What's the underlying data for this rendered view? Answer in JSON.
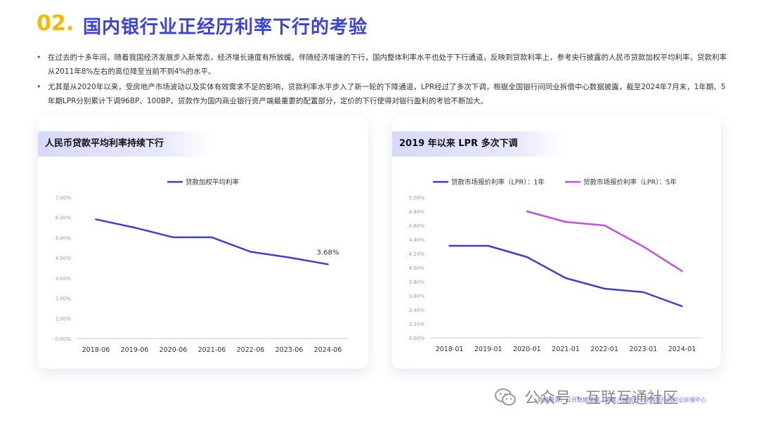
{
  "title": {
    "number": "02.",
    "text": "国内银行业正经历利率下行的考验"
  },
  "bullets": [
    "在过去的十多年间，随着我国经济发展步入新常态，经济增长速度有所放缓。伴随经济增速的下行，国内整体利率水平也处于下行通道，反映到贷款利率上，参考央行披露的人民币贷款加权平均利率，贷款利率从2011年8%左右的高位降至当前不到4%的水平。",
    "尤其是从2020年以来，受房地产市场波动以及实体有效需求不足的影响，贷款利率水平步入了新一轮的下降通道，LPR经过了多次下调，根据全国银行间同业拆借中心数据披露，截至2024年7月末，1年期、5年期LPR分别累计下调96BP、100BP。贷款作为国内商业银行资产端最重要的配置部分，定价的下行使得对银行盈利的考验不断加大。"
  ],
  "chart_data": [
    {
      "type": "line",
      "title": "人民币贷款平均利率持续下行",
      "categories": [
        "2018-06",
        "2019-06",
        "2020-06",
        "2021-06",
        "2022-06",
        "2023-06",
        "2024-06"
      ],
      "series": [
        {
          "name": "贷款加权平均利率",
          "values": [
            5.91,
            5.5,
            5.02,
            5.02,
            4.3,
            4.02,
            3.68
          ],
          "color": "#3c3fcf"
        }
      ],
      "y_ticks": [
        "0.00%",
        "1.00%",
        "2.00%",
        "3.00%",
        "4.00%",
        "5.00%",
        "6.00%",
        "7.00%"
      ],
      "ylim": [
        0,
        7
      ],
      "annotations": [
        {
          "category": "2024-06",
          "text": "3.68%"
        }
      ],
      "legend": "top-center",
      "grid": false
    },
    {
      "type": "line",
      "title": "2019 年以来 LPR 多次下调",
      "categories": [
        "2018-01",
        "2019-01",
        "2020-01",
        "2021-01",
        "2022-01",
        "2023-01",
        "2024-01"
      ],
      "series": [
        {
          "name": "贷款市场报价利率（LPR）：1年",
          "values": [
            4.31,
            4.31,
            4.15,
            3.85,
            3.7,
            3.65,
            3.45
          ],
          "color": "#3c3fcf"
        },
        {
          "name": "贷款市场报价利率（LPR）：5年",
          "values": [
            null,
            null,
            4.8,
            4.65,
            4.6,
            4.3,
            3.95
          ],
          "color": "#c24fe0"
        }
      ],
      "y_ticks": [
        "3.00%",
        "3.20%",
        "3.40%",
        "3.60%",
        "3.80%",
        "4.00%",
        "4.20%",
        "4.40%",
        "4.60%",
        "4.80%",
        "5.00%"
      ],
      "ylim": [
        3,
        5
      ],
      "legend": "top",
      "grid": false
    }
  ],
  "watermark": {
    "text": "公众号 · 互联互通社区",
    "note": "数据来源：公开数据整理，中国人民银行，全国银行间同业拆借中心"
  }
}
